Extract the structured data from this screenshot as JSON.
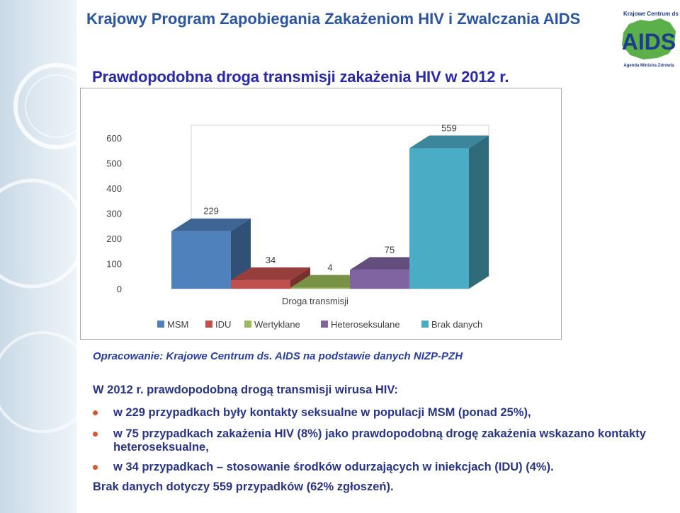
{
  "header": {
    "title": "Krajowy Program Zapobiegania Zakażeniom HIV i Zwalczania AIDS",
    "subtitle": "Prawdopodobna droga transmisji zakażenia HIV w 2012 r."
  },
  "logo": {
    "top_text": "Krajowe Centrum ds.",
    "main_text": "AIDS",
    "bottom_text": "Agenda Ministra Zdrowia"
  },
  "colors": {
    "header": "#2a55a0",
    "subtitle": "#2a2aa8",
    "body_text": "#2a3486",
    "bullet": "#cf5b30"
  },
  "chart_data": {
    "type": "bar",
    "three_d": true,
    "xlabel": "Droga transmisji",
    "ylabel": "",
    "ylim": [
      0,
      600
    ],
    "yticks": [
      0,
      100,
      200,
      300,
      400,
      500,
      600
    ],
    "legend_position": "bottom",
    "series": [
      {
        "name": "MSM",
        "value": 229,
        "color": "#4f81bd"
      },
      {
        "name": "IDU",
        "value": 34,
        "color": "#c0504d"
      },
      {
        "name": "Wertyklane",
        "value": 4,
        "color": "#9bbb59"
      },
      {
        "name": "Heteroseksulane",
        "value": 75,
        "color": "#8064a2"
      },
      {
        "name": "Brak danych",
        "value": 559,
        "color": "#4bacc6"
      }
    ]
  },
  "source": "Opracowanie: Krajowe Centrum ds. AIDS na podstawie danych NIZP-PZH",
  "body": {
    "intro": "W 2012 r. prawdopodobną drogą transmisji wirusa HIV:",
    "bullets": [
      "w 229 przypadkach były kontakty seksualne w populacji MSM (ponad 25%),",
      "w 75 przypadkach zakażenia HIV (8%) jako prawdopodobną drogę zakażenia wskazano kontakty heteroseksualne,",
      "w 34 przypadkach – stosowanie środków odurzających w iniekcjach (IDU) (4%)."
    ],
    "closing": "Brak danych dotyczy 559 przypadków (62% zgłoszeń)."
  }
}
